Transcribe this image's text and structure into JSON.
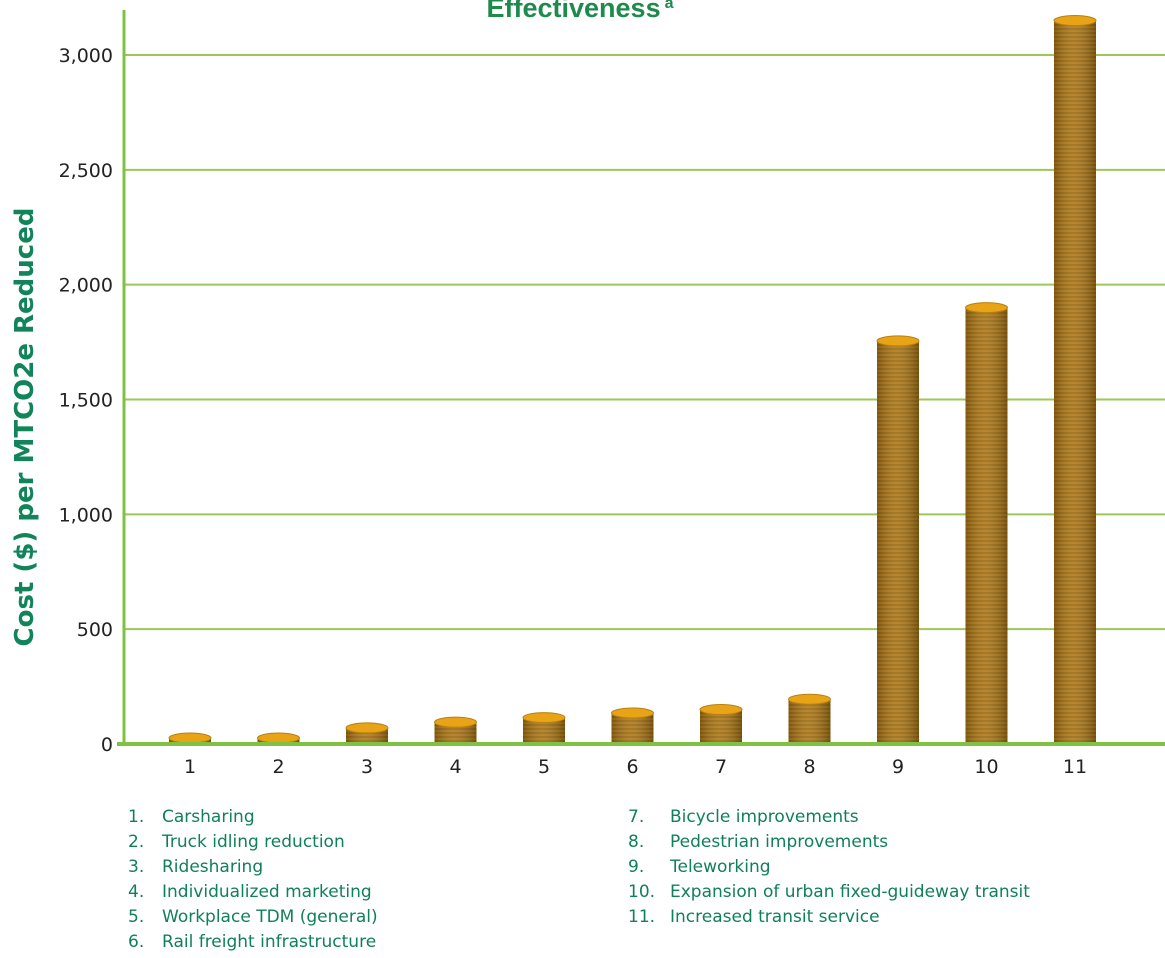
{
  "chart_data": {
    "type": "bar",
    "title": "Effectiveness",
    "title_superscript": "a",
    "ylabel": "Cost ($) per MTCO2e Reduced",
    "xlabel": "",
    "categories": [
      "1",
      "2",
      "3",
      "4",
      "5",
      "6",
      "7",
      "8",
      "9",
      "10",
      "11"
    ],
    "values": [
      10,
      5,
      70,
      95,
      115,
      135,
      150,
      195,
      1755,
      1900,
      3150
    ],
    "ylim": [
      0,
      3200
    ],
    "yticks": [
      0,
      500,
      1000,
      1500,
      2000,
      2500,
      3000
    ],
    "ytick_labels": [
      "0",
      "500",
      "1,000",
      "1,500",
      "2,000",
      "2,500",
      "3,000"
    ],
    "grid": true,
    "legend": [
      {
        "num": "1.",
        "label": "Carsharing"
      },
      {
        "num": "2.",
        "label": "Truck idling reduction"
      },
      {
        "num": "3.",
        "label": "Ridesharing"
      },
      {
        "num": "4.",
        "label": "Individualized marketing"
      },
      {
        "num": "5.",
        "label": "Workplace TDM (general)"
      },
      {
        "num": "6.",
        "label": "Rail freight infrastructure"
      },
      {
        "num": "7.",
        "label": "Bicycle improvements"
      },
      {
        "num": "8.",
        "label": "Pedestrian improvements"
      },
      {
        "num": "9.",
        "label": "Teleworking"
      },
      {
        "num": "10.",
        "label": "Expansion of urban fixed-guideway transit"
      },
      {
        "num": "11.",
        "label": "Increased transit service"
      }
    ]
  },
  "colors": {
    "title": "#1e8a4c",
    "ylabel": "#12845a",
    "gridline": "#9cc75a",
    "axis": "#7fc142",
    "bar_body": "#b07a16",
    "bar_top": "#e8a317",
    "legend_text": "#10805a"
  }
}
